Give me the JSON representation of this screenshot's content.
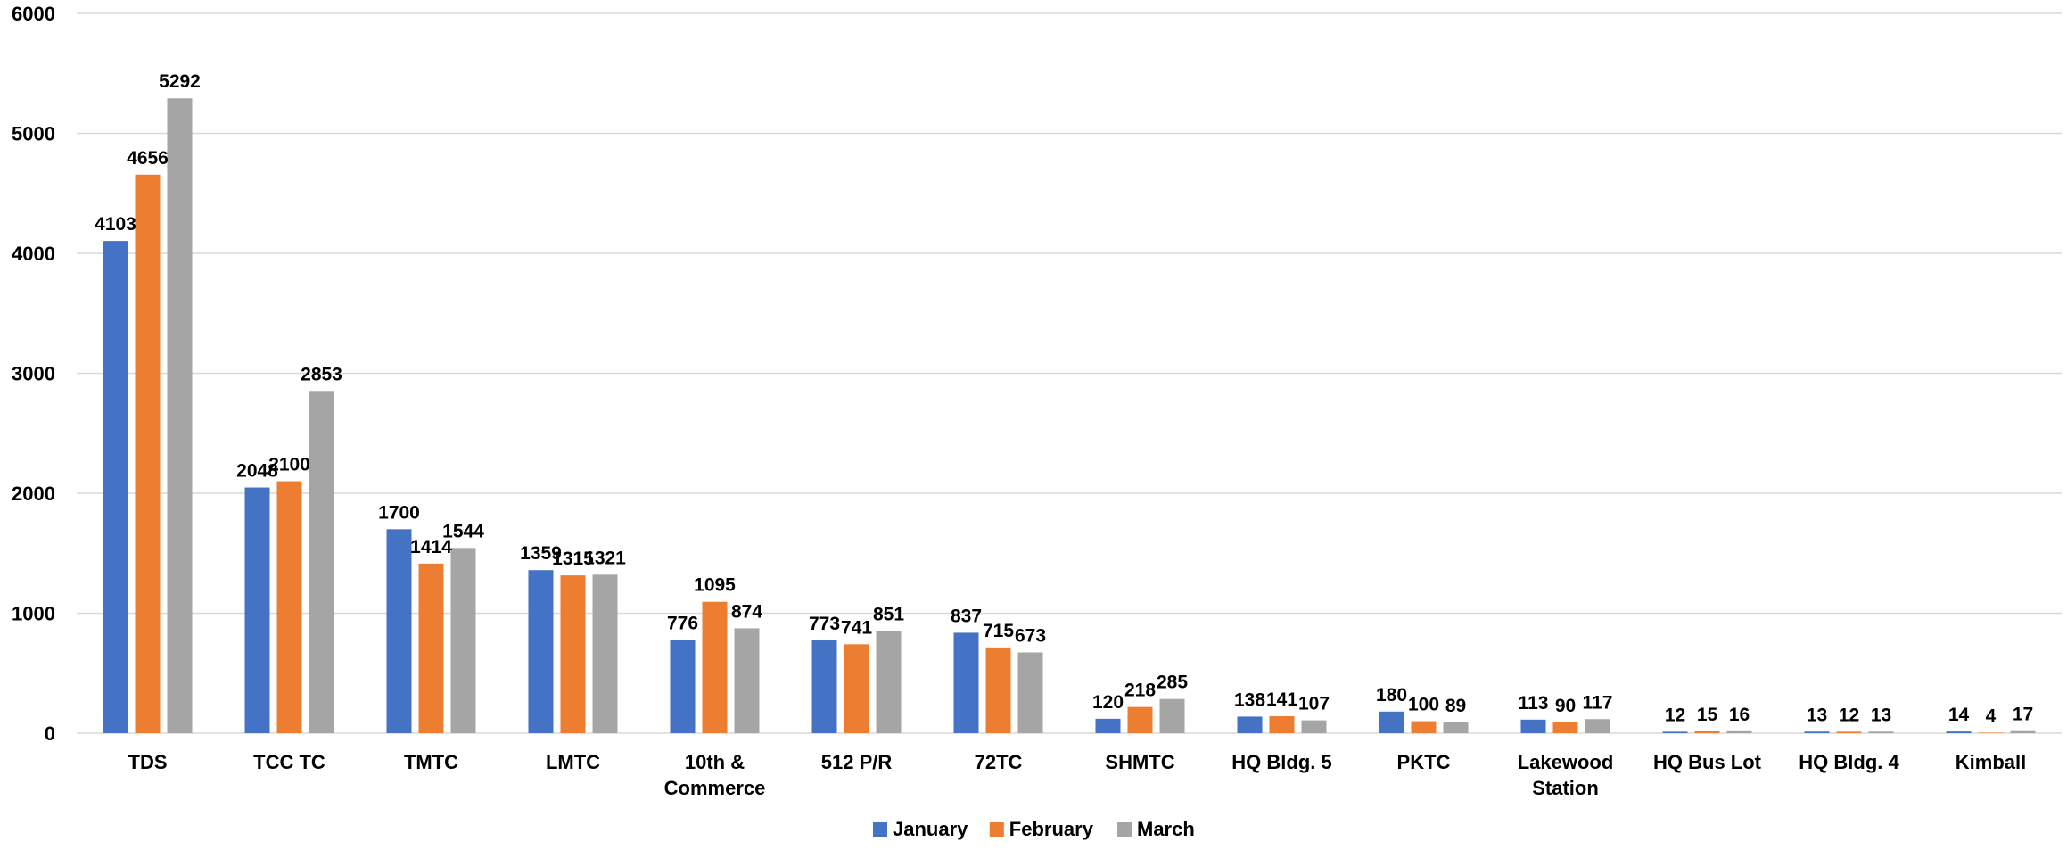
{
  "chart_data": {
    "type": "bar",
    "title": "",
    "xlabel": "",
    "ylabel": "",
    "ylim": [
      0,
      6000
    ],
    "yticks": [
      0,
      1000,
      2000,
      3000,
      4000,
      5000,
      6000
    ],
    "grid": true,
    "legend_position": "bottom",
    "categories": [
      [
        "TDS"
      ],
      [
        "TCC TC"
      ],
      [
        "TMTC"
      ],
      [
        "LMTC"
      ],
      [
        "10th &",
        "Commerce"
      ],
      [
        "512 P/R"
      ],
      [
        "72TC"
      ],
      [
        "SHMTC"
      ],
      [
        "HQ Bldg. 5"
      ],
      [
        "PKTC"
      ],
      [
        "Lakewood",
        "Station"
      ],
      [
        "HQ Bus Lot"
      ],
      [
        "HQ Bldg. 4"
      ],
      [
        "Kimball"
      ]
    ],
    "series": [
      {
        "name": "January",
        "color": "#4472c4",
        "values": [
          4103,
          2048,
          1700,
          1359,
          776,
          773,
          837,
          120,
          138,
          180,
          113,
          12,
          13,
          14
        ]
      },
      {
        "name": "February",
        "color": "#ed7d31",
        "values": [
          4656,
          2100,
          1414,
          1315,
          1095,
          741,
          715,
          218,
          141,
          100,
          90,
          15,
          12,
          4
        ]
      },
      {
        "name": "March",
        "color": "#a5a5a5",
        "values": [
          5292,
          2853,
          1544,
          1321,
          874,
          851,
          673,
          285,
          107,
          89,
          117,
          16,
          13,
          17
        ]
      }
    ]
  }
}
